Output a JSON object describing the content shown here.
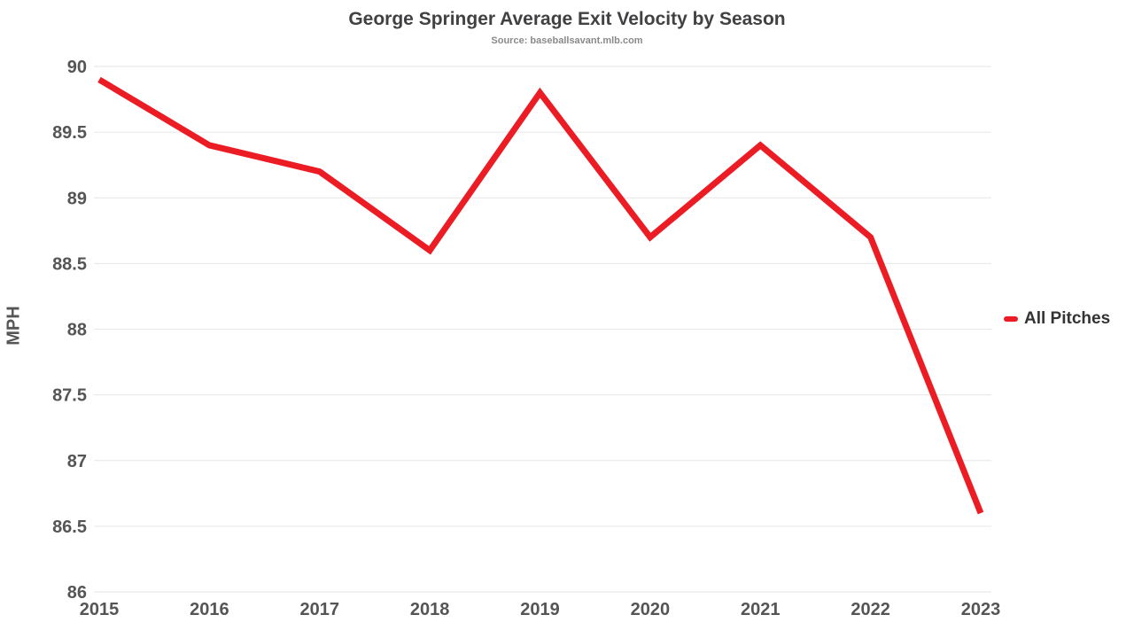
{
  "chart_data": {
    "type": "line",
    "title": "George Springer Average Exit Velocity by Season",
    "subtitle": "Source: baseballsavant.mlb.com",
    "ylabel": "MPH",
    "xlabel": "",
    "categories": [
      "2015",
      "2016",
      "2017",
      "2018",
      "2019",
      "2020",
      "2021",
      "2022",
      "2023"
    ],
    "series": [
      {
        "name": "All Pitches",
        "color": "#ec1c24",
        "values": [
          89.9,
          89.4,
          89.2,
          88.6,
          89.8,
          88.7,
          89.4,
          88.7,
          86.6
        ]
      }
    ],
    "ylim": [
      86,
      90
    ],
    "ytick_step": 0.5,
    "grid": true,
    "grid_color": "#e6e6e6",
    "legend_position": "right"
  }
}
